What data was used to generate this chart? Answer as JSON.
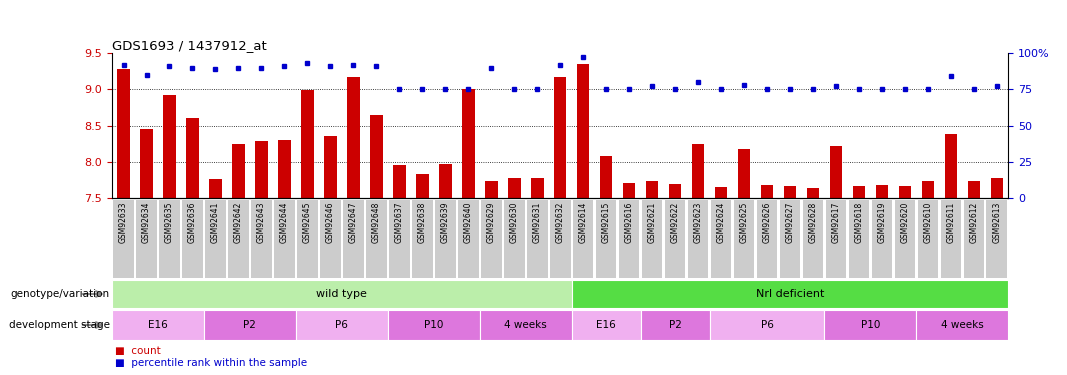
{
  "title": "GDS1693 / 1437912_at",
  "ylim_left": [
    7.5,
    9.5
  ],
  "ylim_right": [
    0,
    100
  ],
  "yticks_left": [
    7.5,
    8.0,
    8.5,
    9.0,
    9.5
  ],
  "yticks_right": [
    0,
    25,
    50,
    75,
    100
  ],
  "yticklabels_right": [
    "0",
    "25",
    "50",
    "75",
    "100%"
  ],
  "samples": [
    "GSM92633",
    "GSM92634",
    "GSM92635",
    "GSM92636",
    "GSM92641",
    "GSM92642",
    "GSM92643",
    "GSM92644",
    "GSM92645",
    "GSM92646",
    "GSM92647",
    "GSM92648",
    "GSM92637",
    "GSM92638",
    "GSM92639",
    "GSM92640",
    "GSM92629",
    "GSM92630",
    "GSM92631",
    "GSM92632",
    "GSM92614",
    "GSM92615",
    "GSM92616",
    "GSM92621",
    "GSM92622",
    "GSM92623",
    "GSM92624",
    "GSM92625",
    "GSM92626",
    "GSM92627",
    "GSM92628",
    "GSM92617",
    "GSM92618",
    "GSM92619",
    "GSM92620",
    "GSM92610",
    "GSM92611",
    "GSM92612",
    "GSM92613"
  ],
  "counts": [
    9.28,
    8.45,
    8.92,
    8.6,
    7.76,
    8.25,
    8.28,
    8.3,
    8.99,
    8.35,
    9.17,
    8.65,
    7.95,
    7.83,
    7.97,
    9.0,
    7.73,
    7.77,
    7.77,
    9.17,
    9.35,
    8.08,
    7.71,
    7.73,
    7.69,
    8.25,
    7.65,
    8.18,
    7.68,
    7.67,
    7.64,
    8.22,
    7.67,
    7.68,
    7.67,
    7.74,
    8.38,
    7.73,
    7.78
  ],
  "percentile": [
    92,
    85,
    91,
    90,
    89,
    90,
    90,
    91,
    93,
    91,
    92,
    91,
    75,
    75,
    75,
    75,
    90,
    75,
    75,
    92,
    97,
    75,
    75,
    77,
    75,
    80,
    75,
    78,
    75,
    75,
    75,
    77,
    75,
    75,
    75,
    75,
    84,
    75,
    77
  ],
  "bar_color": "#cc0000",
  "dot_color": "#0000cc",
  "background_color": "#ffffff",
  "grid_color": "#000000",
  "tick_color_left": "#cc0000",
  "tick_color_right": "#0000cc",
  "genotype_groups": [
    {
      "label": "wild type",
      "start": 0,
      "end": 19,
      "color": "#bbeeaa"
    },
    {
      "label": "Nrl deficient",
      "start": 20,
      "end": 38,
      "color": "#55dd44"
    }
  ],
  "stage_groups": [
    {
      "label": "E16",
      "start": 0,
      "end": 3,
      "color": "#f0b0f0"
    },
    {
      "label": "P2",
      "start": 4,
      "end": 7,
      "color": "#dd77dd"
    },
    {
      "label": "P6",
      "start": 8,
      "end": 11,
      "color": "#f0b0f0"
    },
    {
      "label": "P10",
      "start": 12,
      "end": 15,
      "color": "#dd77dd"
    },
    {
      "label": "4 weeks",
      "start": 16,
      "end": 19,
      "color": "#dd77dd"
    },
    {
      "label": "E16",
      "start": 20,
      "end": 22,
      "color": "#f0b0f0"
    },
    {
      "label": "P2",
      "start": 23,
      "end": 25,
      "color": "#dd77dd"
    },
    {
      "label": "P6",
      "start": 26,
      "end": 30,
      "color": "#f0b0f0"
    },
    {
      "label": "P10",
      "start": 31,
      "end": 34,
      "color": "#dd77dd"
    },
    {
      "label": "4 weeks",
      "start": 35,
      "end": 38,
      "color": "#dd77dd"
    }
  ],
  "xtick_bg_color": "#cccccc",
  "legend_items": [
    {
      "label": "count",
      "color": "#cc0000"
    },
    {
      "label": "percentile rank within the sample",
      "color": "#0000cc"
    }
  ]
}
